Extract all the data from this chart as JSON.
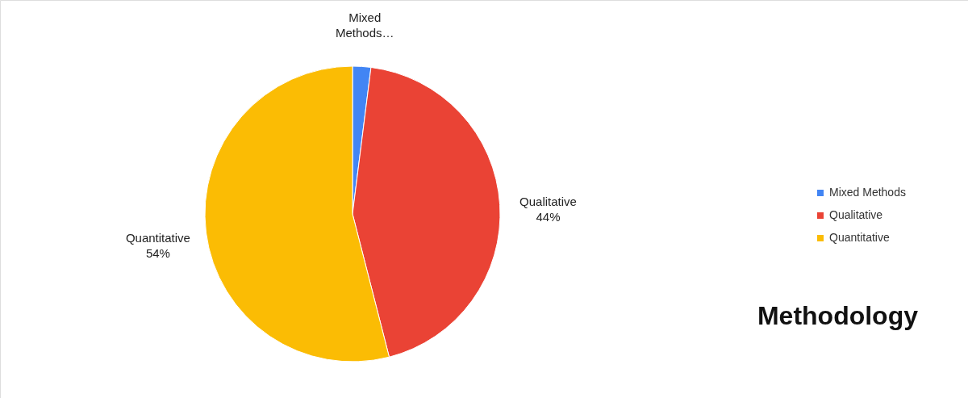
{
  "chart_data": {
    "type": "pie",
    "title": "Methodology",
    "categories": [
      "Mixed Methods",
      "Qualitative",
      "Quantitative"
    ],
    "values": [
      2,
      44,
      54
    ],
    "colors": [
      "#4285f4",
      "#ea4335",
      "#fbbc04"
    ],
    "value_labels": [
      "Mixed Methods…",
      "Qualitative 44%",
      "Quantitative 54%"
    ],
    "legend": "right"
  }
}
